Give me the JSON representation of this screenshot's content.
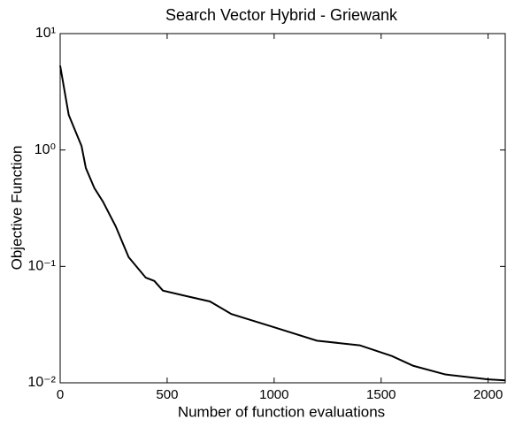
{
  "chart_data": {
    "type": "line",
    "title": "Search Vector Hybrid - Griewank",
    "xlabel": "Number of function evaluations",
    "ylabel": "Objective Function",
    "x": [
      0,
      40,
      100,
      120,
      160,
      200,
      260,
      320,
      400,
      440,
      480,
      600,
      700,
      800,
      1000,
      1200,
      1400,
      1550,
      1650,
      1800,
      2000,
      2080
    ],
    "series": [
      {
        "name": "Objective",
        "color": "#000000",
        "values": [
          5.3,
          2.0,
          1.08,
          0.7,
          0.47,
          0.36,
          0.22,
          0.12,
          0.08,
          0.075,
          0.062,
          0.055,
          0.05,
          0.039,
          0.03,
          0.023,
          0.021,
          0.017,
          0.014,
          0.0118,
          0.0107,
          0.0105
        ]
      }
    ],
    "xlim": [
      0,
      2080
    ],
    "xticks": [
      0,
      500,
      1000,
      1500,
      2000
    ],
    "ylim": [
      0.01,
      10
    ],
    "log_y": true,
    "yticks": [
      {
        "value": 0.01,
        "label": "10⁻²"
      },
      {
        "value": 0.1,
        "label": "10⁻¹"
      },
      {
        "value": 1,
        "label": "10⁰"
      },
      {
        "value": 10,
        "label": "10¹"
      }
    ],
    "grid": false
  }
}
